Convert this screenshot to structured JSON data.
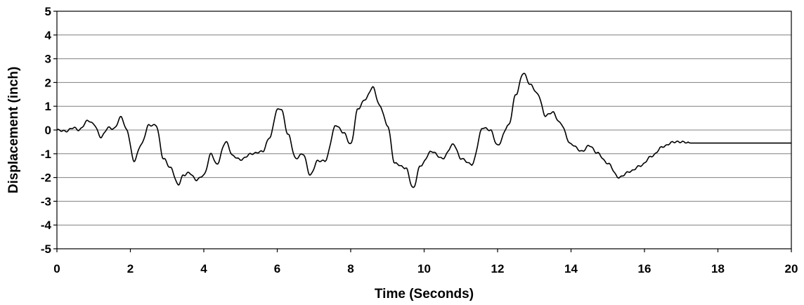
{
  "chart_data": {
    "type": "line",
    "xlabel": "Time (Seconds)",
    "ylabel": "Displacement (inch)",
    "xlim": [
      0,
      20
    ],
    "ylim": [
      -5,
      5
    ],
    "x_ticks": [
      "0",
      "2",
      "4",
      "6",
      "8",
      "10",
      "12",
      "14",
      "16",
      "18",
      "20"
    ],
    "y_ticks": [
      "5",
      "4",
      "3",
      "2",
      "1",
      "0",
      "-1",
      "-2",
      "-3",
      "-4",
      "-5"
    ],
    "grid": "horizontal",
    "legend": "none",
    "line_color": "#000000",
    "grid_color": "#808080",
    "series": [
      {
        "x": [
          0,
          0.25,
          0.45,
          0.6,
          0.85,
          1.0,
          1.2,
          1.4,
          1.55,
          1.75,
          1.9,
          2.1,
          2.3,
          2.5,
          2.7,
          2.9,
          3.1,
          3.3,
          3.45,
          3.6,
          3.8,
          4.0,
          4.2,
          4.35,
          4.6,
          4.8,
          5.0,
          5.3,
          5.6,
          5.8,
          6.0,
          6.1,
          6.3,
          6.5,
          6.7,
          6.9,
          7.1,
          7.3,
          7.6,
          7.8,
          8.0,
          8.2,
          8.4,
          8.6,
          8.8,
          9.0,
          9.2,
          9.5,
          9.7,
          9.9,
          10.2,
          10.5,
          10.8,
          11.0,
          11.3,
          11.6,
          11.8,
          12.0,
          12.3,
          12.5,
          12.7,
          12.9,
          13.1,
          13.3,
          13.5,
          13.7,
          14.0,
          14.3,
          14.5,
          14.7,
          15.0,
          15.3,
          15.6,
          15.9,
          16.2,
          16.5,
          16.8,
          17.0,
          17.3,
          17.6,
          18.0,
          19.0,
          20.0
        ],
        "y": [
          0,
          -0.05,
          0.1,
          0.0,
          0.4,
          0.25,
          -0.3,
          0.1,
          0.05,
          0.55,
          0.0,
          -1.3,
          -0.6,
          0.2,
          0.2,
          -1.2,
          -1.6,
          -2.3,
          -1.9,
          -1.8,
          -2.1,
          -1.9,
          -1.0,
          -1.45,
          -0.5,
          -1.1,
          -1.25,
          -1.0,
          -0.9,
          -0.3,
          0.85,
          0.9,
          -0.2,
          -1.2,
          -1.0,
          -1.9,
          -1.3,
          -1.3,
          0.2,
          -0.1,
          -0.6,
          0.9,
          1.3,
          1.8,
          1.0,
          0.2,
          -1.4,
          -1.6,
          -2.45,
          -1.5,
          -0.9,
          -1.2,
          -0.6,
          -1.2,
          -1.45,
          0.1,
          0.0,
          -0.65,
          0.2,
          1.5,
          2.4,
          1.9,
          1.5,
          0.6,
          0.75,
          0.3,
          -0.6,
          -0.9,
          -0.65,
          -0.95,
          -1.4,
          -2.0,
          -1.75,
          -1.5,
          -1.1,
          -0.7,
          -0.5,
          -0.5,
          -0.55,
          -0.55,
          -0.55,
          -0.55,
          -0.55
        ]
      }
    ]
  }
}
